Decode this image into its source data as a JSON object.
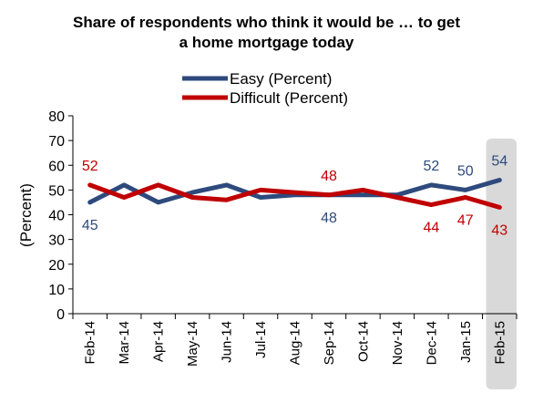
{
  "chart_data": {
    "type": "line",
    "title_lines": [
      "Share of respondents who think it would be … to get",
      "a home mortgage today"
    ],
    "ylabel": "(Percent)",
    "xlabel": "",
    "ylim": [
      0,
      80
    ],
    "yticks": [
      0,
      10,
      20,
      30,
      40,
      50,
      60,
      70,
      80
    ],
    "categories": [
      "Feb-14",
      "Mar-14",
      "Apr-14",
      "May-14",
      "Jun-14",
      "Jul-14",
      "Aug-14",
      "Sep-14",
      "Oct-14",
      "Nov-14",
      "Dec-14",
      "Jan-15",
      "Feb-15"
    ],
    "highlighted_category": "Feb-15",
    "legend_position": "top-center",
    "grid": false,
    "series": [
      {
        "name": "Easy (Percent)",
        "color": "#2e4a7d",
        "values": [
          45,
          52,
          45,
          49,
          52,
          47,
          48,
          48,
          48,
          48,
          52,
          50,
          54
        ],
        "labels": [
          {
            "index": 0,
            "text": "45",
            "pos": "below"
          },
          {
            "index": 7,
            "text": "48",
            "pos": "below"
          },
          {
            "index": 10,
            "text": "52",
            "pos": "above"
          },
          {
            "index": 11,
            "text": "50",
            "pos": "above"
          },
          {
            "index": 12,
            "text": "54",
            "pos": "above"
          }
        ]
      },
      {
        "name": "Difficult (Percent)",
        "color": "#c00000",
        "values": [
          52,
          47,
          52,
          47,
          46,
          50,
          49,
          48,
          50,
          47,
          44,
          47,
          43
        ],
        "labels": [
          {
            "index": 0,
            "text": "52",
            "pos": "above"
          },
          {
            "index": 7,
            "text": "48",
            "pos": "above"
          },
          {
            "index": 10,
            "text": "44",
            "pos": "below"
          },
          {
            "index": 11,
            "text": "47",
            "pos": "below"
          },
          {
            "index": 12,
            "text": "43",
            "pos": "below"
          }
        ]
      }
    ]
  }
}
